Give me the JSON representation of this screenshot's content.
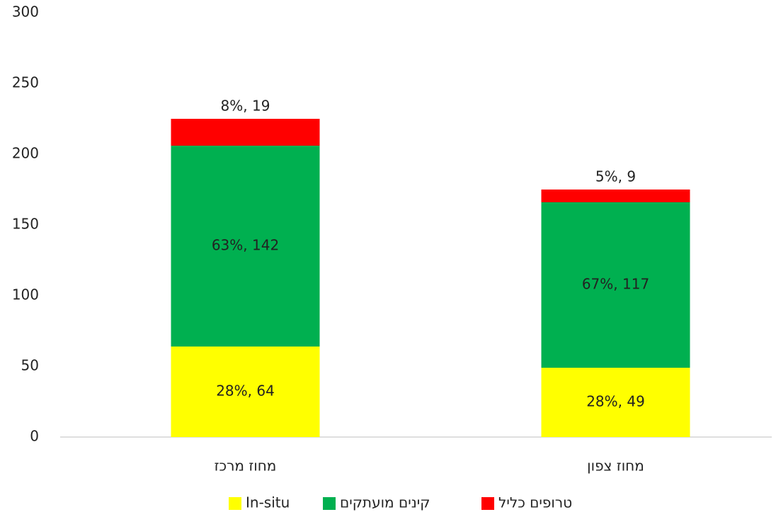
{
  "chart_data": {
    "type": "stacked_bar",
    "categories": [
      "מחוז מרכז",
      "מחוז צפון"
    ],
    "series": [
      {
        "name": "In-situ",
        "color": "#ffff00",
        "values": [
          64,
          49
        ],
        "value_labels": [
          "28%, 64",
          "28%, 49"
        ]
      },
      {
        "name": "קינים מועתקים",
        "color": "#00b050",
        "values": [
          142,
          117
        ],
        "value_labels": [
          "63%, 142",
          "67%, 117"
        ]
      },
      {
        "name": "טרופים כליל",
        "color": "#ff0000",
        "values": [
          19,
          9
        ],
        "value_labels": [
          "8%, 19",
          "5%, 9"
        ]
      }
    ],
    "ylim": [
      0,
      300
    ],
    "yticks": [
      0,
      50,
      100,
      150,
      200,
      250,
      300
    ],
    "grid": false,
    "legend": "bottom"
  }
}
